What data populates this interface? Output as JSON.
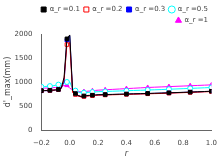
{
  "chart_data": {
    "type": "line",
    "title": "",
    "xlabel": "r",
    "ylabel": "d'_max(mm)",
    "x": [
      -0.2,
      -0.18,
      -0.16,
      -0.14,
      -0.12,
      -0.1,
      -0.08,
      -0.06,
      -0.04,
      -0.02,
      0.0,
      0.02,
      0.04,
      0.06,
      0.08,
      0.1,
      0.12,
      0.14,
      0.16,
      0.18,
      0.2,
      0.25,
      0.3,
      0.35,
      0.4,
      0.45,
      0.5,
      0.55,
      0.6,
      0.65,
      0.7,
      0.75,
      0.8,
      0.85,
      0.9,
      0.95,
      1.0
    ],
    "series": [
      {
        "name": "α_r =0.1",
        "color": "black",
        "marker": "square",
        "values": [
          820,
          822,
          824,
          826,
          830,
          836,
          845,
          870,
          1100,
          1900,
          1980,
          820,
          760,
          720,
          700,
          710,
          718,
          722,
          726,
          730,
          735,
          738,
          742,
          746,
          750,
          754,
          758,
          762,
          766,
          770,
          775,
          780,
          785,
          790,
          796,
          802,
          808
        ]
      },
      {
        "name": "α_r =0.2",
        "color": "red",
        "marker": "square_open",
        "values": [
          818,
          820,
          822,
          824,
          828,
          834,
          843,
          868,
          1050,
          1780,
          1820,
          780,
          740,
          705,
          690,
          698,
          706,
          712,
          716,
          720,
          726,
          730,
          734,
          738,
          742,
          746,
          750,
          754,
          758,
          762,
          768,
          773,
          778,
          783,
          789,
          795,
          801
        ]
      },
      {
        "name": "α_r =0.3",
        "color": "blue",
        "marker": "square",
        "values": [
          816,
          818,
          820,
          822,
          826,
          832,
          841,
          866,
          1000,
          1870,
          1960,
          800,
          748,
          712,
          695,
          704,
          712,
          718,
          722,
          726,
          731,
          735,
          739,
          743,
          747,
          751,
          755,
          759,
          763,
          767,
          773,
          778,
          783,
          788,
          794,
          800,
          806
        ]
      },
      {
        "name": "α_r =0.5",
        "color": "cyan",
        "marker": "circle_open",
        "values": [
          900,
          905,
          910,
          915,
          920,
          930,
          945,
          960,
          980,
          1000,
          1000,
          860,
          820,
          790,
          775,
          778,
          782,
          786,
          790,
          794,
          798,
          803,
          808,
          813,
          818,
          823,
          828,
          833,
          838,
          843,
          849,
          855,
          861,
          867,
          873,
          879,
          886
        ]
      },
      {
        "name": "α_r =1",
        "color": "magenta",
        "marker": "triangle",
        "values": [
          870,
          872,
          875,
          878,
          882,
          888,
          898,
          912,
          928,
          930,
          870,
          840,
          810,
          800,
          795,
          800,
          806,
          812,
          818,
          824,
          830,
          838,
          846,
          854,
          862,
          870,
          878,
          886,
          892,
          898,
          904,
          910,
          916,
          922,
          928,
          934,
          940
        ]
      }
    ],
    "xlim": [
      -0.2,
      1.0
    ],
    "xticks": [
      {
        "value": -0.2,
        "label": "−0.2"
      },
      {
        "value": 0.0,
        "label": "0.0"
      },
      0.2,
      0.4,
      0.6,
      0.8,
      {
        "value": 1.0,
        "label": "1.0"
      }
    ],
    "ylim": [
      0,
      2000
    ],
    "yticks": [
      0,
      500,
      1000,
      1500,
      2000
    ],
    "grid": false,
    "legend": "upper right"
  }
}
